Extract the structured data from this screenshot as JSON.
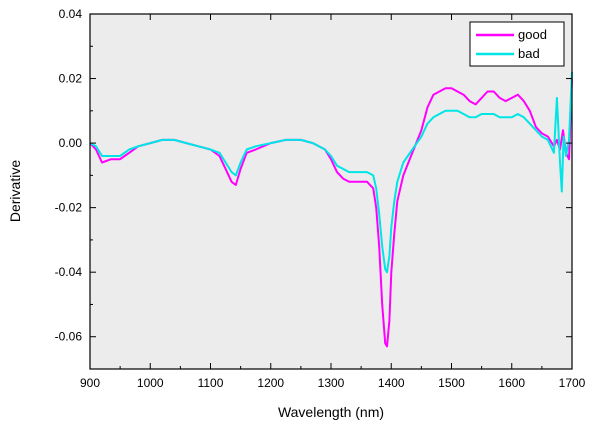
{
  "chart_data": {
    "type": "line",
    "title": "",
    "xlabel": "Wavelength (nm)",
    "ylabel": "Derivative",
    "xlim": [
      900,
      1700
    ],
    "ylim": [
      -0.07,
      0.04
    ],
    "x_ticks": [
      "900",
      "1000",
      "1100",
      "1200",
      "1300",
      "1400",
      "1500",
      "1600",
      "1700"
    ],
    "y_ticks": [
      "0.04",
      "0.02",
      "0.00",
      "-0.02",
      "-0.04",
      "-0.06"
    ],
    "grid": false,
    "legend_position": "top-right",
    "background": "#ececec",
    "series": [
      {
        "name": "good",
        "color": "#ff00ff",
        "x": [
          900,
          910,
          920,
          935,
          950,
          965,
          980,
          1000,
          1020,
          1040,
          1060,
          1080,
          1100,
          1115,
          1125,
          1135,
          1142,
          1150,
          1160,
          1175,
          1200,
          1225,
          1250,
          1270,
          1290,
          1300,
          1310,
          1320,
          1330,
          1340,
          1350,
          1360,
          1370,
          1375,
          1380,
          1385,
          1390,
          1393,
          1397,
          1400,
          1405,
          1410,
          1420,
          1435,
          1450,
          1460,
          1470,
          1480,
          1490,
          1500,
          1510,
          1520,
          1530,
          1540,
          1550,
          1560,
          1570,
          1580,
          1590,
          1600,
          1610,
          1620,
          1630,
          1640,
          1650,
          1660,
          1670,
          1675,
          1680,
          1685,
          1690,
          1695,
          1700
        ],
        "y": [
          0,
          -0.002,
          -0.006,
          -0.005,
          -0.005,
          -0.003,
          -0.001,
          0,
          0.001,
          0.001,
          0,
          -0.001,
          -0.002,
          -0.004,
          -0.008,
          -0.012,
          -0.013,
          -0.008,
          -0.003,
          -0.002,
          0,
          0.001,
          0.001,
          0,
          -0.002,
          -0.005,
          -0.009,
          -0.011,
          -0.012,
          -0.012,
          -0.012,
          -0.012,
          -0.014,
          -0.02,
          -0.032,
          -0.05,
          -0.062,
          -0.063,
          -0.055,
          -0.04,
          -0.028,
          -0.018,
          -0.01,
          -0.003,
          0.004,
          0.011,
          0.015,
          0.016,
          0.017,
          0.017,
          0.016,
          0.015,
          0.013,
          0.012,
          0.014,
          0.016,
          0.016,
          0.014,
          0.013,
          0.014,
          0.015,
          0.013,
          0.01,
          0.005,
          0.003,
          0.002,
          -0.001,
          0.001,
          -0.002,
          0.004,
          -0.003,
          -0.005,
          0.02
        ]
      },
      {
        "name": "bad",
        "color": "#00e5e5",
        "x": [
          900,
          910,
          920,
          935,
          950,
          965,
          980,
          1000,
          1020,
          1040,
          1060,
          1080,
          1100,
          1115,
          1125,
          1135,
          1142,
          1150,
          1160,
          1175,
          1200,
          1225,
          1250,
          1270,
          1290,
          1300,
          1310,
          1320,
          1330,
          1340,
          1350,
          1360,
          1370,
          1375,
          1380,
          1385,
          1390,
          1393,
          1397,
          1400,
          1405,
          1410,
          1420,
          1435,
          1450,
          1460,
          1470,
          1480,
          1490,
          1500,
          1510,
          1520,
          1530,
          1540,
          1550,
          1560,
          1570,
          1580,
          1590,
          1600,
          1610,
          1620,
          1630,
          1640,
          1650,
          1660,
          1670,
          1675,
          1680,
          1683,
          1686,
          1690,
          1695,
          1700
        ],
        "y": [
          0,
          -0.001,
          -0.004,
          -0.004,
          -0.004,
          -0.002,
          -0.001,
          0,
          0.001,
          0.001,
          0,
          -0.001,
          -0.002,
          -0.003,
          -0.006,
          -0.009,
          -0.01,
          -0.006,
          -0.002,
          -0.001,
          0,
          0.001,
          0.001,
          0,
          -0.002,
          -0.004,
          -0.007,
          -0.008,
          -0.009,
          -0.009,
          -0.009,
          -0.009,
          -0.01,
          -0.014,
          -0.022,
          -0.032,
          -0.039,
          -0.04,
          -0.035,
          -0.026,
          -0.018,
          -0.012,
          -0.006,
          -0.002,
          0.002,
          0.006,
          0.008,
          0.009,
          0.01,
          0.01,
          0.01,
          0.009,
          0.008,
          0.008,
          0.009,
          0.009,
          0.009,
          0.008,
          0.008,
          0.008,
          0.009,
          0.008,
          0.006,
          0.004,
          0.002,
          0.001,
          -0.003,
          0.014,
          -0.006,
          -0.015,
          0.002,
          -0.004,
          0.001,
          0.022
        ]
      }
    ]
  }
}
